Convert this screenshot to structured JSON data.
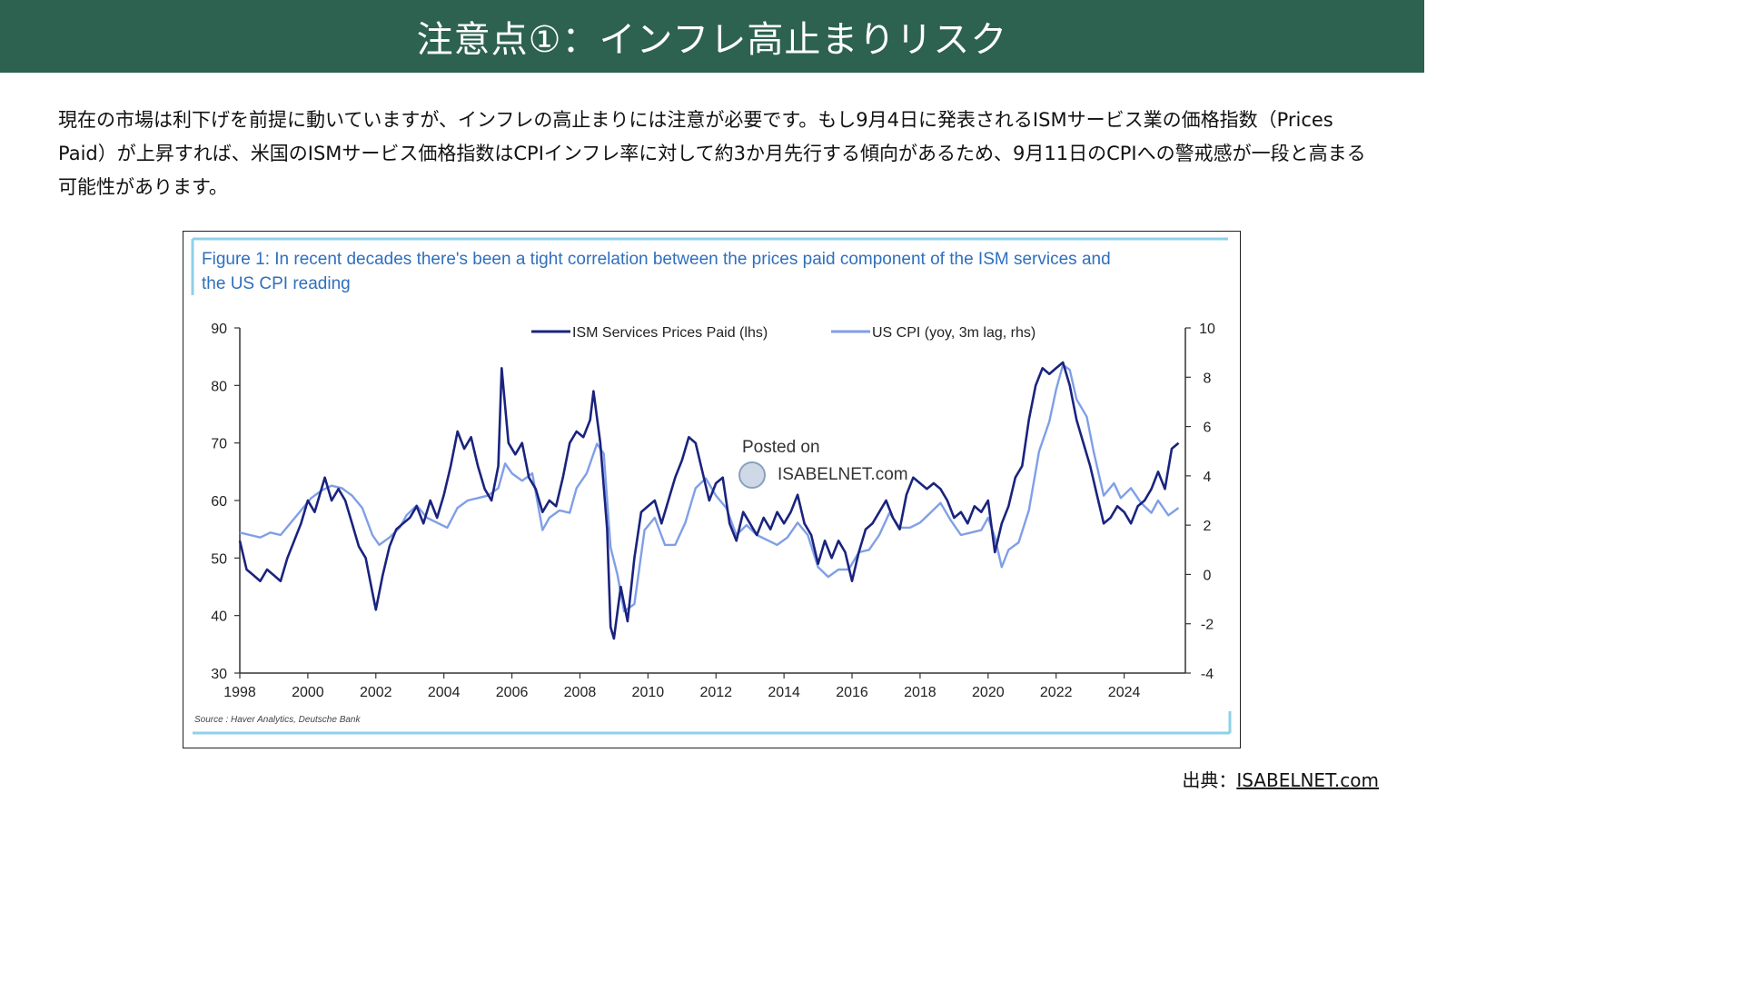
{
  "header": {
    "title": "注意点①：インフレ高止まりリスク"
  },
  "intro": {
    "text": "現在の市場は利下げを前提に動いていますが、インフレの高止まりには注意が必要です。もし9月4日に発表されるISMサービス業の価格指数（Prices Paid）が上昇すれば、米国のISMサービス価格指数はCPIインフレ率に対して約3か月先行する傾向があるため、9月11日のCPIへの警戒感が一段と高まる可能性があります。"
  },
  "source": {
    "label": "出典：",
    "link": "ISABELNET.com"
  },
  "watermark": {
    "line1": "Posted on",
    "line2": "ISABELNET.com"
  },
  "colors": {
    "header_bg": "#2d6150",
    "ism": "#1a237e",
    "cpi": "#7f9fe6",
    "figure_title": "#2f6fbd",
    "frame": "#8fd0e8"
  },
  "chart_data": {
    "type": "line",
    "title": "Figure 1: In recent decades there's been a tight correlation between the prices paid component of the ISM services and the US CPI reading",
    "footnote": "Source : Haver Analytics, Deutsche Bank",
    "x_ticks": [
      "1998",
      "2000",
      "2002",
      "2004",
      "2006",
      "2008",
      "2010",
      "2012",
      "2014",
      "2016",
      "2018",
      "2020",
      "2022",
      "2024"
    ],
    "xlim": [
      1998,
      2025.8
    ],
    "y_left": {
      "ticks": [
        "90",
        "80",
        "70",
        "60",
        "50",
        "40",
        "30"
      ],
      "lim": [
        30,
        90
      ]
    },
    "y_right": {
      "ticks": [
        "10",
        "8",
        "6",
        "4",
        "2",
        "0",
        "-2",
        "-4"
      ],
      "lim": [
        -4,
        10
      ]
    },
    "legend_position": "top-center",
    "series": [
      {
        "name": "ISM Services Prices Paid (lhs)",
        "axis": "left",
        "color": "#1a237e",
        "points": [
          [
            1998.0,
            53
          ],
          [
            1998.2,
            48
          ],
          [
            1998.4,
            47
          ],
          [
            1998.6,
            46
          ],
          [
            1998.8,
            48
          ],
          [
            1999.0,
            47
          ],
          [
            1999.2,
            46
          ],
          [
            1999.4,
            50
          ],
          [
            1999.6,
            53
          ],
          [
            1999.8,
            56
          ],
          [
            2000.0,
            60
          ],
          [
            2000.2,
            58
          ],
          [
            2000.5,
            64
          ],
          [
            2000.7,
            60
          ],
          [
            2000.9,
            62
          ],
          [
            2001.1,
            60
          ],
          [
            2001.3,
            56
          ],
          [
            2001.5,
            52
          ],
          [
            2001.7,
            50
          ],
          [
            2001.9,
            44
          ],
          [
            2002.0,
            41
          ],
          [
            2002.2,
            47
          ],
          [
            2002.4,
            52
          ],
          [
            2002.6,
            55
          ],
          [
            2002.8,
            56
          ],
          [
            2003.0,
            57
          ],
          [
            2003.2,
            59
          ],
          [
            2003.4,
            56
          ],
          [
            2003.6,
            60
          ],
          [
            2003.8,
            57
          ],
          [
            2004.0,
            61
          ],
          [
            2004.2,
            66
          ],
          [
            2004.4,
            72
          ],
          [
            2004.6,
            69
          ],
          [
            2004.8,
            71
          ],
          [
            2005.0,
            66
          ],
          [
            2005.2,
            62
          ],
          [
            2005.4,
            60
          ],
          [
            2005.6,
            66
          ],
          [
            2005.7,
            83
          ],
          [
            2005.9,
            70
          ],
          [
            2006.1,
            68
          ],
          [
            2006.3,
            70
          ],
          [
            2006.5,
            64
          ],
          [
            2006.7,
            62
          ],
          [
            2006.9,
            58
          ],
          [
            2007.1,
            60
          ],
          [
            2007.3,
            59
          ],
          [
            2007.5,
            64
          ],
          [
            2007.7,
            70
          ],
          [
            2007.9,
            72
          ],
          [
            2008.1,
            71
          ],
          [
            2008.3,
            74
          ],
          [
            2008.4,
            79
          ],
          [
            2008.6,
            70
          ],
          [
            2008.8,
            55
          ],
          [
            2008.9,
            38
          ],
          [
            2009.0,
            36
          ],
          [
            2009.2,
            45
          ],
          [
            2009.4,
            39
          ],
          [
            2009.6,
            50
          ],
          [
            2009.8,
            58
          ],
          [
            2010.0,
            59
          ],
          [
            2010.2,
            60
          ],
          [
            2010.4,
            56
          ],
          [
            2010.6,
            60
          ],
          [
            2010.8,
            64
          ],
          [
            2011.0,
            67
          ],
          [
            2011.2,
            71
          ],
          [
            2011.4,
            70
          ],
          [
            2011.6,
            65
          ],
          [
            2011.8,
            60
          ],
          [
            2012.0,
            63
          ],
          [
            2012.2,
            64
          ],
          [
            2012.4,
            56
          ],
          [
            2012.6,
            53
          ],
          [
            2012.8,
            58
          ],
          [
            2013.0,
            56
          ],
          [
            2013.2,
            54
          ],
          [
            2013.4,
            57
          ],
          [
            2013.6,
            55
          ],
          [
            2013.8,
            58
          ],
          [
            2014.0,
            56
          ],
          [
            2014.2,
            58
          ],
          [
            2014.4,
            61
          ],
          [
            2014.6,
            56
          ],
          [
            2014.8,
            54
          ],
          [
            2015.0,
            49
          ],
          [
            2015.2,
            53
          ],
          [
            2015.4,
            50
          ],
          [
            2015.6,
            53
          ],
          [
            2015.8,
            51
          ],
          [
            2016.0,
            46
          ],
          [
            2016.2,
            51
          ],
          [
            2016.4,
            55
          ],
          [
            2016.6,
            56
          ],
          [
            2016.8,
            58
          ],
          [
            2017.0,
            60
          ],
          [
            2017.2,
            57
          ],
          [
            2017.4,
            55
          ],
          [
            2017.6,
            61
          ],
          [
            2017.8,
            64
          ],
          [
            2018.0,
            63
          ],
          [
            2018.2,
            62
          ],
          [
            2018.4,
            63
          ],
          [
            2018.6,
            62
          ],
          [
            2018.8,
            60
          ],
          [
            2019.0,
            57
          ],
          [
            2019.2,
            58
          ],
          [
            2019.4,
            56
          ],
          [
            2019.6,
            59
          ],
          [
            2019.8,
            58
          ],
          [
            2020.0,
            60
          ],
          [
            2020.2,
            51
          ],
          [
            2020.4,
            56
          ],
          [
            2020.6,
            59
          ],
          [
            2020.8,
            64
          ],
          [
            2021.0,
            66
          ],
          [
            2021.2,
            74
          ],
          [
            2021.4,
            80
          ],
          [
            2021.6,
            83
          ],
          [
            2021.8,
            82
          ],
          [
            2022.0,
            83
          ],
          [
            2022.2,
            84
          ],
          [
            2022.4,
            80
          ],
          [
            2022.6,
            74
          ],
          [
            2022.8,
            70
          ],
          [
            2023.0,
            66
          ],
          [
            2023.2,
            61
          ],
          [
            2023.4,
            56
          ],
          [
            2023.6,
            57
          ],
          [
            2023.8,
            59
          ],
          [
            2024.0,
            58
          ],
          [
            2024.2,
            56
          ],
          [
            2024.4,
            59
          ],
          [
            2024.6,
            60
          ],
          [
            2024.8,
            62
          ],
          [
            2025.0,
            65
          ],
          [
            2025.2,
            62
          ],
          [
            2025.4,
            69
          ],
          [
            2025.6,
            70
          ]
        ]
      },
      {
        "name": "US CPI (yoy, 3m lag, rhs)",
        "axis": "right",
        "color": "#7f9fe6",
        "points": [
          [
            1998.0,
            1.7
          ],
          [
            1998.3,
            1.6
          ],
          [
            1998.6,
            1.5
          ],
          [
            1998.9,
            1.7
          ],
          [
            1999.2,
            1.6
          ],
          [
            1999.5,
            2.1
          ],
          [
            1999.8,
            2.6
          ],
          [
            2000.1,
            3.1
          ],
          [
            2000.4,
            3.4
          ],
          [
            2000.7,
            3.6
          ],
          [
            2001.0,
            3.5
          ],
          [
            2001.3,
            3.2
          ],
          [
            2001.6,
            2.7
          ],
          [
            2001.9,
            1.6
          ],
          [
            2002.1,
            1.2
          ],
          [
            2002.4,
            1.5
          ],
          [
            2002.7,
            1.9
          ],
          [
            2002.9,
            2.4
          ],
          [
            2003.2,
            2.8
          ],
          [
            2003.5,
            2.3
          ],
          [
            2003.8,
            2.1
          ],
          [
            2004.1,
            1.9
          ],
          [
            2004.4,
            2.7
          ],
          [
            2004.7,
            3.0
          ],
          [
            2005.0,
            3.1
          ],
          [
            2005.3,
            3.2
          ],
          [
            2005.6,
            3.5
          ],
          [
            2005.8,
            4.5
          ],
          [
            2006.0,
            4.1
          ],
          [
            2006.3,
            3.8
          ],
          [
            2006.6,
            4.1
          ],
          [
            2006.9,
            1.8
          ],
          [
            2007.1,
            2.3
          ],
          [
            2007.4,
            2.6
          ],
          [
            2007.7,
            2.5
          ],
          [
            2007.9,
            3.5
          ],
          [
            2008.2,
            4.1
          ],
          [
            2008.5,
            5.3
          ],
          [
            2008.7,
            4.9
          ],
          [
            2008.9,
            1.1
          ],
          [
            2009.1,
            0.0
          ],
          [
            2009.3,
            -1.5
          ],
          [
            2009.6,
            -1.2
          ],
          [
            2009.9,
            1.8
          ],
          [
            2010.2,
            2.3
          ],
          [
            2010.5,
            1.2
          ],
          [
            2010.8,
            1.2
          ],
          [
            2011.1,
            2.1
          ],
          [
            2011.4,
            3.5
          ],
          [
            2011.7,
            3.9
          ],
          [
            2012.0,
            3.2
          ],
          [
            2012.3,
            2.7
          ],
          [
            2012.6,
            1.6
          ],
          [
            2012.9,
            2.0
          ],
          [
            2013.2,
            1.6
          ],
          [
            2013.5,
            1.4
          ],
          [
            2013.8,
            1.2
          ],
          [
            2014.1,
            1.5
          ],
          [
            2014.4,
            2.1
          ],
          [
            2014.7,
            1.6
          ],
          [
            2015.0,
            0.3
          ],
          [
            2015.3,
            -0.1
          ],
          [
            2015.6,
            0.2
          ],
          [
            2015.9,
            0.2
          ],
          [
            2016.2,
            0.9
          ],
          [
            2016.5,
            1.0
          ],
          [
            2016.8,
            1.6
          ],
          [
            2017.1,
            2.5
          ],
          [
            2017.4,
            1.9
          ],
          [
            2017.7,
            1.9
          ],
          [
            2018.0,
            2.1
          ],
          [
            2018.3,
            2.5
          ],
          [
            2018.6,
            2.9
          ],
          [
            2018.9,
            2.2
          ],
          [
            2019.2,
            1.6
          ],
          [
            2019.5,
            1.7
          ],
          [
            2019.8,
            1.8
          ],
          [
            2020.0,
            2.3
          ],
          [
            2020.2,
            1.5
          ],
          [
            2020.4,
            0.3
          ],
          [
            2020.6,
            1.0
          ],
          [
            2020.9,
            1.3
          ],
          [
            2021.2,
            2.6
          ],
          [
            2021.5,
            5.0
          ],
          [
            2021.8,
            6.2
          ],
          [
            2022.0,
            7.5
          ],
          [
            2022.2,
            8.5
          ],
          [
            2022.4,
            8.3
          ],
          [
            2022.6,
            7.1
          ],
          [
            2022.9,
            6.4
          ],
          [
            2023.1,
            5.0
          ],
          [
            2023.4,
            3.2
          ],
          [
            2023.7,
            3.7
          ],
          [
            2023.9,
            3.1
          ],
          [
            2024.2,
            3.5
          ],
          [
            2024.5,
            2.9
          ],
          [
            2024.8,
            2.5
          ],
          [
            2025.0,
            3.0
          ],
          [
            2025.3,
            2.4
          ],
          [
            2025.6,
            2.7
          ]
        ]
      }
    ]
  }
}
